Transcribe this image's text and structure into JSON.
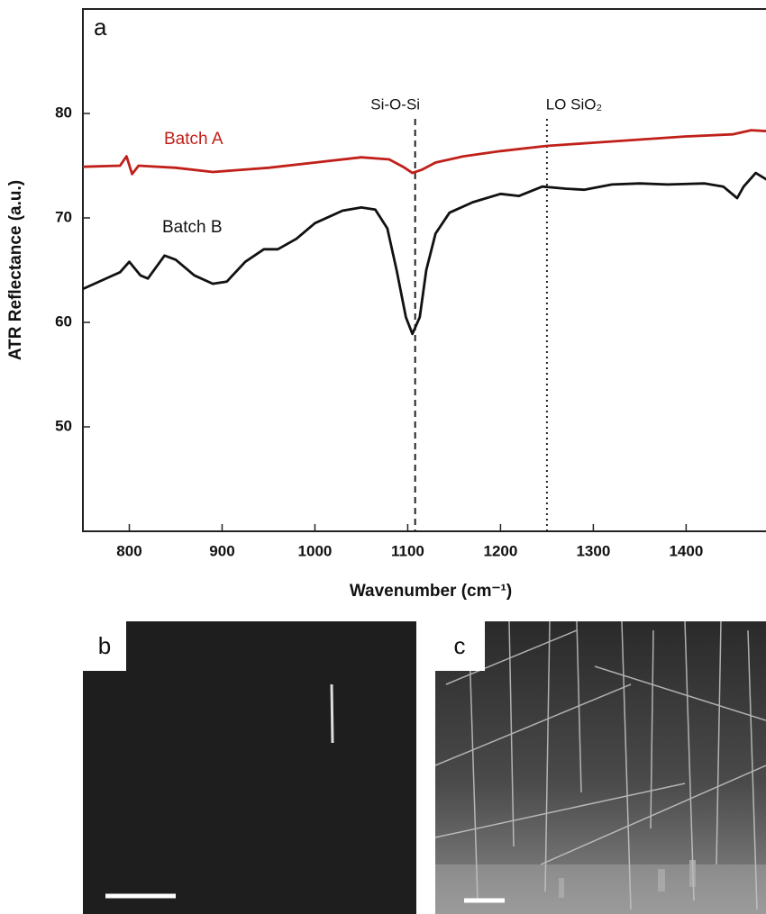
{
  "chart_data": {
    "type": "line",
    "panel_label": "a",
    "x_label": "Wavenumber (cm⁻¹)",
    "y_label": "ATR Reflectance (a.u.)",
    "xlim": [
      750,
      1488
    ],
    "ylim": [
      40,
      90
    ],
    "xticks": [
      800,
      900,
      1000,
      1100,
      1200,
      1300,
      1400
    ],
    "yticks": [
      50,
      60,
      70,
      80
    ],
    "series": [
      {
        "name": "Batch A",
        "color": "#c0201a",
        "x": [
          750,
          790,
          797,
          803,
          810,
          850,
          890,
          950,
          1000,
          1050,
          1080,
          1095,
          1105,
          1115,
          1130,
          1160,
          1200,
          1250,
          1300,
          1350,
          1400,
          1450,
          1470,
          1488
        ],
        "values": [
          74.9,
          75.0,
          75.9,
          74.2,
          75.0,
          74.8,
          74.4,
          74.8,
          75.3,
          75.8,
          75.6,
          74.9,
          74.3,
          74.6,
          75.3,
          75.9,
          76.4,
          76.9,
          77.2,
          77.5,
          77.8,
          78.0,
          78.4,
          78.3
        ]
      },
      {
        "name": "Batch B",
        "color": "#111111",
        "x": [
          750,
          790,
          800,
          812,
          820,
          838,
          850,
          870,
          890,
          905,
          925,
          945,
          960,
          980,
          1000,
          1030,
          1050,
          1065,
          1078,
          1088,
          1098,
          1105,
          1113,
          1120,
          1130,
          1145,
          1170,
          1200,
          1220,
          1245,
          1270,
          1290,
          1320,
          1350,
          1380,
          1420,
          1440,
          1455,
          1462,
          1475,
          1488
        ],
        "values": [
          63.2,
          64.8,
          65.8,
          64.5,
          64.2,
          66.4,
          66.0,
          64.5,
          63.7,
          63.9,
          65.8,
          67.0,
          67.0,
          68.0,
          69.5,
          70.7,
          71.0,
          70.8,
          69.0,
          65.0,
          60.5,
          58.9,
          60.5,
          65.0,
          68.5,
          70.5,
          71.5,
          72.3,
          72.1,
          73.0,
          72.8,
          72.7,
          73.2,
          73.3,
          73.2,
          73.3,
          73.0,
          71.9,
          73.0,
          74.3,
          73.6
        ]
      }
    ],
    "annotations": [
      {
        "text": "Si-O-Si",
        "x": 1108,
        "style": "dashed"
      },
      {
        "text": "LO SiO₂",
        "x": 1250,
        "style": "dotted"
      }
    ]
  },
  "panels": [
    {
      "label": "b"
    },
    {
      "label": "c"
    }
  ]
}
